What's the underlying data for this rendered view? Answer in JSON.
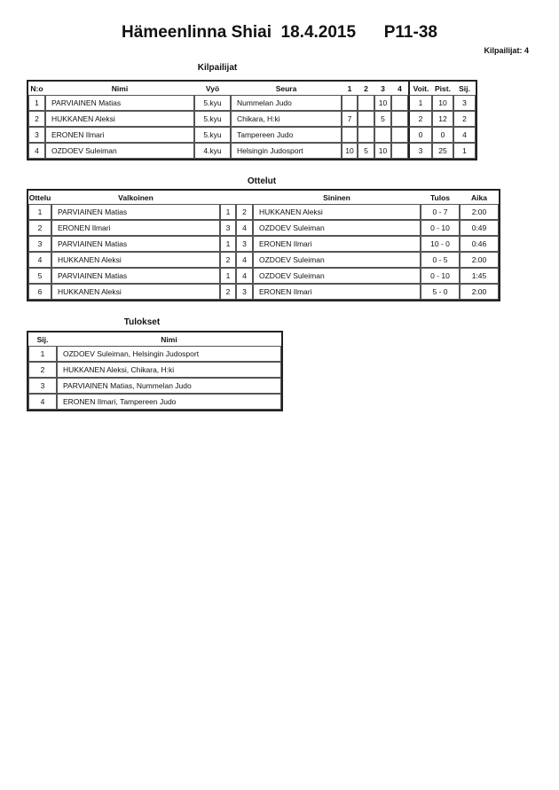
{
  "header": {
    "title": "Hämeenlinna Shiai  18.4.2015      P11-38",
    "competitor_count": "Kilpailijat: 4"
  },
  "competitors": {
    "title": "Kilpailijat",
    "columns": [
      "N:o",
      "Nimi",
      "Vyö",
      "Seura",
      "1",
      "2",
      "3",
      "4",
      "Voit.",
      "Pist.",
      "Sij."
    ],
    "rows": [
      [
        "1",
        "PARVIAINEN Matias",
        "5.kyu",
        "Nummelan Judo",
        "",
        "",
        "10",
        "",
        "1",
        "10",
        "3"
      ],
      [
        "2",
        "HUKKANEN Aleksi",
        "5.kyu",
        "Chikara, H:ki",
        "7",
        "",
        "5",
        "",
        "2",
        "12",
        "2"
      ],
      [
        "3",
        "ERONEN Ilmari",
        "5.kyu",
        "Tampereen Judo",
        "",
        "",
        "",
        "",
        "0",
        "0",
        "4"
      ],
      [
        "4",
        "OZDOEV Suleiman",
        "4.kyu",
        "Helsingin Judosport",
        "10",
        "5",
        "10",
        "",
        "3",
        "25",
        "1"
      ]
    ]
  },
  "matches": {
    "title": "Ottelut",
    "columns": [
      "Ottelu",
      "Valkoinen",
      "",
      "",
      "Sininen",
      "Tulos",
      "Aika"
    ],
    "rows": [
      [
        "1",
        "PARVIAINEN Matias",
        "1",
        "2",
        "HUKKANEN Aleksi",
        "0 - 7",
        "2:00"
      ],
      [
        "2",
        "ERONEN Ilmari",
        "3",
        "4",
        "OZDOEV Suleiman",
        "0 - 10",
        "0:49"
      ],
      [
        "3",
        "PARVIAINEN Matias",
        "1",
        "3",
        "ERONEN Ilmari",
        "10 - 0",
        "0:46"
      ],
      [
        "4",
        "HUKKANEN Aleksi",
        "2",
        "4",
        "OZDOEV Suleiman",
        "0 - 5",
        "2:00"
      ],
      [
        "5",
        "PARVIAINEN Matias",
        "1",
        "4",
        "OZDOEV Suleiman",
        "0 - 10",
        "1:45"
      ],
      [
        "6",
        "HUKKANEN Aleksi",
        "2",
        "3",
        "ERONEN Ilmari",
        "5 - 0",
        "2:00"
      ]
    ]
  },
  "results": {
    "title": "Tulokset",
    "columns": [
      "Sij.",
      "Nimi"
    ],
    "rows": [
      [
        "1",
        "OZDOEV Suleiman, Helsingin Judosport"
      ],
      [
        "2",
        "HUKKANEN Aleksi, Chikara, H:ki"
      ],
      [
        "3",
        "PARVIAINEN Matias, Nummelan Judo"
      ],
      [
        "4",
        "ERONEN Ilmari, Tampereen Judo"
      ]
    ]
  }
}
